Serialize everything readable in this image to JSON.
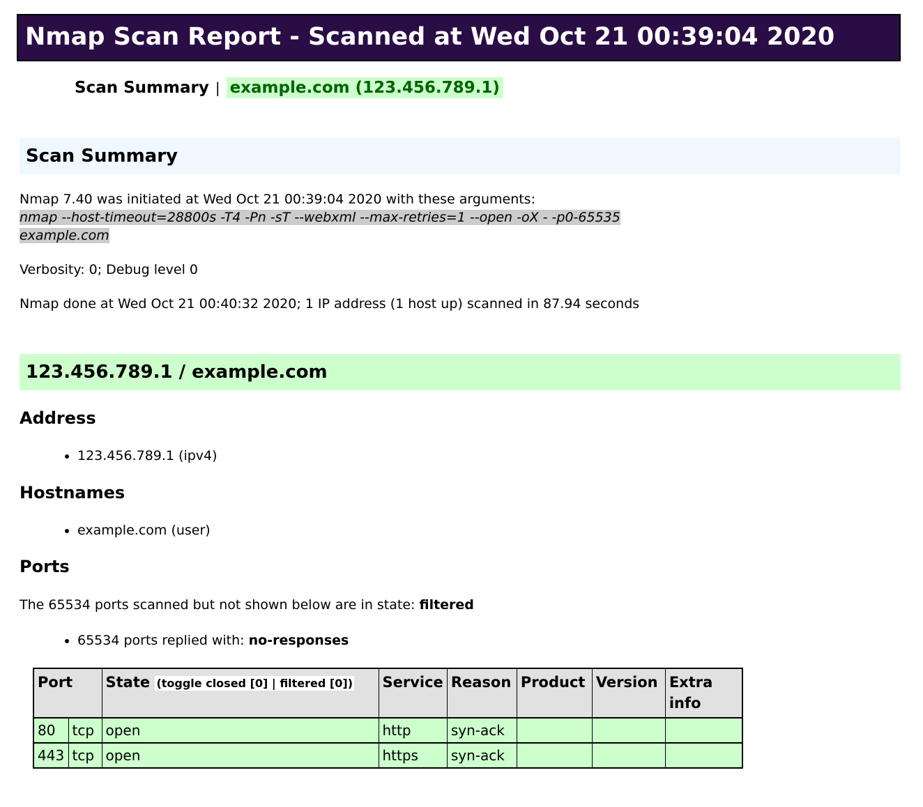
{
  "title": "Nmap Scan Report - Scanned at Wed Oct 21 00:39:04 2020",
  "nav": {
    "scan_summary": "Scan Summary",
    "separator": "|",
    "host_link": "example.com (123.456.789.1)"
  },
  "scan_summary": {
    "heading": "Scan Summary",
    "initiated": "Nmap 7.40 was initiated at Wed Oct 21 00:39:04 2020 with these arguments:",
    "arguments": "nmap --host-timeout=28800s -T4 -Pn -sT --webxml --max-retries=1 --open -oX - -p0-65535 example.com",
    "verbosity": "Verbosity: 0; Debug level 0",
    "done": "Nmap done at Wed Oct 21 00:40:32 2020; 1 IP address (1 host up) scanned in 87.94 seconds"
  },
  "host": {
    "heading": "123.456.789.1 / example.com",
    "address_heading": "Address",
    "addresses": [
      "123.456.789.1 (ipv4)"
    ],
    "hostnames_heading": "Hostnames",
    "hostnames": [
      "example.com (user)"
    ],
    "ports_heading": "Ports",
    "ports_summary_prefix": "The 65534 ports scanned but not shown below are in state: ",
    "ports_summary_state": "filtered",
    "ports_replied_prefix": "65534 ports replied with: ",
    "ports_replied_value": "no-responses"
  },
  "ports_table": {
    "headers": {
      "port": "Port",
      "state": "State",
      "toggle_prefix": "(toggle ",
      "toggle_closed": "closed [0]",
      "toggle_separator": " | ",
      "toggle_filtered": "filtered [0]",
      "toggle_suffix": ")",
      "service": "Service",
      "reason": "Reason",
      "product": "Product",
      "version": "Version",
      "extra_info": "Extra info"
    },
    "rows": [
      {
        "port": "80",
        "protocol": "tcp",
        "state": "open",
        "service": "http",
        "reason": "syn-ack",
        "product": "",
        "version": "",
        "extra_info": ""
      },
      {
        "port": "443",
        "protocol": "tcp",
        "state": "open",
        "service": "https",
        "reason": "syn-ack",
        "product": "",
        "version": "",
        "extra_info": ""
      }
    ]
  },
  "colors": {
    "title_bar_bg": "#2A0D45",
    "title_text": "#FFFFFF",
    "section_heading_bg": "#F0F8FF",
    "host_heading_bg": "#CCFFCC",
    "host_link_color": "#006400",
    "host_link_bg": "#CCFFCC",
    "arguments_bg": "#CCCCCC",
    "table_header_bg": "#E1E1E1",
    "open_port_row_bg": "#CCFFCC"
  }
}
